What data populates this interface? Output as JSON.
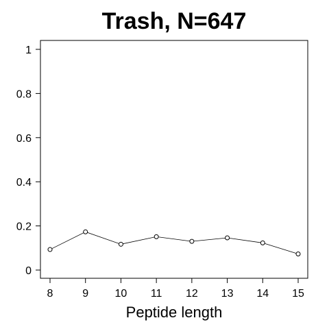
{
  "chart_data": {
    "type": "line",
    "title": "Trash, N=647",
    "xlabel": "Peptide length",
    "ylabel": "",
    "x": [
      8,
      9,
      10,
      11,
      12,
      13,
      14,
      15
    ],
    "values": [
      0.093,
      0.173,
      0.117,
      0.151,
      0.13,
      0.146,
      0.123,
      0.073
    ],
    "xlim": [
      8,
      15
    ],
    "ylim": [
      0,
      1
    ],
    "xticks": [
      "8",
      "9",
      "10",
      "11",
      "12",
      "13",
      "14",
      "15"
    ],
    "yticks": [
      "0",
      "0.2",
      "0.4",
      "0.6",
      "0.8",
      "1"
    ],
    "marker": "open-circle",
    "grid": false,
    "legend": "none",
    "colors": {
      "line": "#000000",
      "marker_fill": "#ffffff",
      "background": "#ffffff"
    }
  }
}
